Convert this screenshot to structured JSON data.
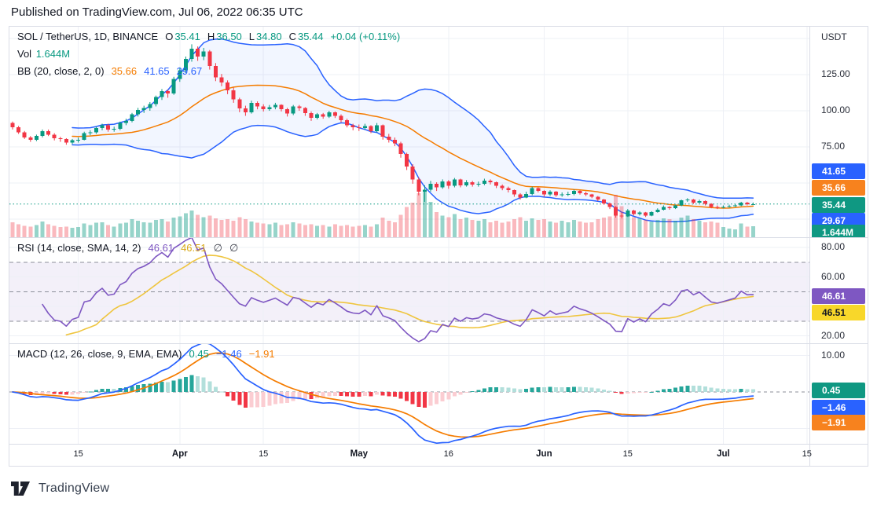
{
  "header": {
    "published": "Published on TradingView.com, Jul 06, 2022 06:35 UTC"
  },
  "footer": {
    "logo_text": "TradingView"
  },
  "main_legend": {
    "title": "SOL / TetherUS, 1D, BINANCE",
    "values": [
      {
        "label": "O",
        "value": "35.41",
        "color": "teal"
      },
      {
        "label": "H",
        "value": "36.50",
        "color": "teal"
      },
      {
        "label": "L",
        "value": "34.80",
        "color": "teal"
      },
      {
        "label": "C",
        "value": "35.44",
        "color": "teal"
      },
      {
        "label": "",
        "value": "+0.04 (+0.11%)",
        "color": "teal"
      }
    ],
    "vol_label": "Vol",
    "vol_value": "1.644M",
    "bb_title": "BB (20, close, 2, 0)",
    "bb_values": [
      {
        "value": "35.66",
        "color": "orange"
      },
      {
        "value": "41.65",
        "color": "blue"
      },
      {
        "value": "29.67",
        "color": "blue"
      }
    ]
  },
  "rsi_legend": {
    "title": "RSI (14, close, SMA, 14, 2)",
    "values": [
      {
        "value": "46.61",
        "color": "purple"
      },
      {
        "value": "46.51",
        "color": "yellow_text"
      },
      {
        "value": "∅",
        "color": "muted"
      },
      {
        "value": "∅",
        "color": "muted"
      }
    ]
  },
  "macd_legend": {
    "title": "MACD (12, 26, close, 9, EMA, EMA)",
    "values": [
      {
        "value": "0.45",
        "color": "teal"
      },
      {
        "value": "−1.46",
        "color": "blue"
      },
      {
        "value": "−1.91",
        "color": "orange"
      }
    ]
  },
  "axis": {
    "currency": "USDT",
    "main_labels": [
      {
        "text": "125.00",
        "price": 125
      },
      {
        "text": "100.00",
        "price": 100
      },
      {
        "text": "75.00",
        "price": 75
      }
    ],
    "main_badges": [
      {
        "text": "41.65",
        "color": "blue"
      },
      {
        "text": "35.66",
        "color": "orange"
      },
      {
        "text": "35.44",
        "color": "teal"
      },
      {
        "text": "29.67",
        "color": "blue"
      },
      {
        "text": "1.644M",
        "color": "teal"
      }
    ],
    "rsi_labels": [
      {
        "text": "80.00",
        "value": 80
      },
      {
        "text": "60.00",
        "value": 60
      },
      {
        "text": "20.00",
        "value": 20
      }
    ],
    "rsi_badges": [
      {
        "text": "46.61",
        "color": "purple"
      },
      {
        "text": "46.51",
        "color": "yellow"
      }
    ],
    "macd_labels": [
      {
        "text": "10.00",
        "value": 10
      }
    ],
    "macd_badges": [
      {
        "text": "0.45",
        "color": "teal"
      },
      {
        "text": "−1.46",
        "color": "blue"
      },
      {
        "text": "−1.91",
        "color": "orange"
      }
    ]
  },
  "time_axis": {
    "labels": [
      "15",
      "Apr",
      "15",
      "May",
      "16",
      "Jun",
      "15",
      "Jul",
      "15"
    ]
  },
  "colors": {
    "up": "#089981",
    "down": "#f23645",
    "blue": "#2962ff",
    "orange": "#f57c00",
    "teal": "#089981",
    "purple": "#7e57c2",
    "yellow_line": "#efc53f",
    "yellow_text": "#d9a918",
    "muted": "#434651",
    "grid": "#eef0f6",
    "dash": "#8b8e99",
    "bb_fill": "rgba(41,98,255,0.06)",
    "rsi_fill": "rgba(126,87,194,0.09)",
    "vol_up": "rgba(8,153,129,0.42)",
    "vol_down": "rgba(242,54,69,0.35)",
    "hist_pos": "#26a69a",
    "hist_pos_light": "#b2dfdb",
    "hist_neg": "#f23645",
    "hist_neg_light": "#fbcdd2",
    "badge_blue": "#2962ff",
    "badge_orange": "#f7821e",
    "badge_teal": "#0f9882",
    "badge_purple": "#7e57c2",
    "badge_yellow": "#f8d72a",
    "price_line": "#089981"
  },
  "chart_data": {
    "type": "candlestick+indicators",
    "symbol": "SOL/TetherUS",
    "interval": "1D",
    "exchange": "BINANCE",
    "last": {
      "open": 35.41,
      "high": 36.5,
      "low": 34.8,
      "close": 35.44,
      "change": "+0.04 (+0.11%)",
      "volume": "1.644M"
    },
    "indicators": {
      "bollinger": {
        "length": 20,
        "source": "close",
        "mult": 2,
        "offset": 0,
        "basis": 35.66,
        "upper": 41.65,
        "lower": 29.67
      },
      "rsi": {
        "length": 14,
        "source": "close",
        "smoothing": "SMA",
        "smoothing_length": 14,
        "value": 46.61,
        "sma": 46.51,
        "levels": [
          70,
          50,
          30
        ],
        "range": [
          20,
          80
        ]
      },
      "macd": {
        "fast": 12,
        "slow": 26,
        "source": "close",
        "signal_length": 9,
        "osc_ma": "EMA",
        "signal_ma": "EMA",
        "histogram": 0.45,
        "macd": -1.46,
        "signal": -1.91
      }
    },
    "price_axis_ticks": [
      125,
      100,
      75
    ],
    "rsi_axis_ticks": [
      80,
      60,
      20
    ],
    "macd_axis_ticks": [
      10
    ],
    "time_tick_labels": [
      "15",
      "Apr",
      "15",
      "May",
      "16",
      "Jun",
      "15",
      "Jul",
      "15"
    ],
    "candles": [
      [
        91.5,
        92.5,
        87,
        88.5
      ],
      [
        88.5,
        89.5,
        84,
        85
      ],
      [
        85,
        86,
        80.5,
        81.5
      ],
      [
        81.5,
        82.5,
        78.5,
        80
      ],
      [
        80,
        83.5,
        79,
        82.5
      ],
      [
        82.5,
        87,
        81.5,
        86
      ],
      [
        86,
        87,
        82.5,
        83.5
      ],
      [
        83.5,
        84.5,
        79.5,
        81
      ],
      [
        81,
        82,
        78.5,
        80.5
      ],
      [
        80.5,
        81,
        76.5,
        78
      ],
      [
        78,
        80.5,
        77,
        79.5
      ],
      [
        79.5,
        81.5,
        78,
        80
      ],
      [
        80,
        85.5,
        79.5,
        84.5
      ],
      [
        84.5,
        86.5,
        83,
        85
      ],
      [
        85,
        89,
        84,
        88
      ],
      [
        88,
        91,
        86.5,
        90
      ],
      [
        90,
        91,
        85.5,
        87
      ],
      [
        87,
        89,
        85.5,
        87.5
      ],
      [
        87.5,
        92.5,
        86.5,
        91.5
      ],
      [
        91.5,
        94.5,
        90,
        93
      ],
      [
        93,
        98.5,
        92,
        97.5
      ],
      [
        97.5,
        102,
        96,
        100.5
      ],
      [
        100.5,
        103.5,
        98.5,
        102
      ],
      [
        102,
        106,
        100,
        104.5
      ],
      [
        104.5,
        110.5,
        103,
        109.5
      ],
      [
        109.5,
        115,
        107.5,
        113.5
      ],
      [
        113.5,
        114.5,
        109,
        112
      ],
      [
        112,
        123.5,
        111,
        122
      ],
      [
        122,
        130,
        120,
        128
      ],
      [
        128,
        137.5,
        126,
        136
      ],
      [
        136,
        146,
        134,
        143
      ],
      [
        143,
        144.5,
        134.5,
        137.5
      ],
      [
        137.5,
        143.5,
        135,
        141
      ],
      [
        141,
        142,
        128.5,
        131
      ],
      [
        131,
        133,
        120.5,
        123
      ],
      [
        123,
        125.5,
        117,
        119.5
      ],
      [
        119.5,
        121,
        111.5,
        114
      ],
      [
        114,
        116,
        105.5,
        108
      ],
      [
        108,
        109,
        99,
        101.5
      ],
      [
        101.5,
        103.5,
        96.5,
        99
      ],
      [
        99,
        107,
        98,
        105.5
      ],
      [
        105.5,
        106.5,
        101,
        103
      ],
      [
        103,
        104.5,
        99.5,
        101
      ],
      [
        101,
        104,
        100,
        102.5
      ],
      [
        102.5,
        105.5,
        101,
        104
      ],
      [
        104,
        104.5,
        99.5,
        101
      ],
      [
        101,
        102,
        96,
        98
      ],
      [
        98,
        104,
        97,
        103
      ],
      [
        103,
        104,
        100,
        102
      ],
      [
        102,
        102.5,
        96.5,
        98.5
      ],
      [
        98.5,
        99.5,
        93,
        95
      ],
      [
        95,
        98.5,
        94,
        97.5
      ],
      [
        97.5,
        98.5,
        94.5,
        96
      ],
      [
        96,
        100,
        95,
        99
      ],
      [
        99,
        99.5,
        95,
        96.5
      ],
      [
        96.5,
        97.5,
        92,
        93.5
      ],
      [
        93.5,
        94.5,
        88.5,
        90
      ],
      [
        90,
        91,
        86.5,
        88.5
      ],
      [
        88.5,
        90.5,
        86,
        88
      ],
      [
        88,
        91,
        87,
        89.5
      ],
      [
        89.5,
        90,
        84.5,
        86
      ],
      [
        86,
        91.5,
        85,
        90
      ],
      [
        90,
        90.5,
        80,
        82
      ],
      [
        82,
        84,
        78,
        80
      ],
      [
        80,
        81.5,
        75.5,
        77.5
      ],
      [
        77.5,
        78.5,
        67.5,
        70
      ],
      [
        70,
        71,
        59,
        61.5
      ],
      [
        61.5,
        63,
        49.5,
        52.5
      ],
      [
        52.5,
        54,
        41.5,
        44
      ],
      [
        44,
        48.5,
        37,
        45.5
      ],
      [
        45.5,
        51.5,
        44,
        49.5
      ],
      [
        49.5,
        50.5,
        44.5,
        47
      ],
      [
        47,
        52.5,
        46,
        51
      ],
      [
        51,
        52,
        46,
        48
      ],
      [
        48,
        53.5,
        47,
        52.5
      ],
      [
        52.5,
        53,
        47,
        48.5
      ],
      [
        48.5,
        52,
        47.5,
        50.5
      ],
      [
        50.5,
        51.5,
        47.5,
        49
      ],
      [
        49,
        51,
        47.5,
        49.5
      ],
      [
        49.5,
        53,
        48.5,
        51.5
      ],
      [
        51.5,
        52.5,
        49,
        50.5
      ],
      [
        50.5,
        51,
        46.5,
        48
      ],
      [
        48,
        49,
        45,
        46.5
      ],
      [
        46.5,
        47.5,
        43.5,
        45
      ],
      [
        45,
        45.5,
        40.5,
        42
      ],
      [
        42,
        43,
        38.5,
        40
      ],
      [
        40,
        44,
        39.5,
        42.5
      ],
      [
        42.5,
        47.5,
        41.5,
        46.5
      ],
      [
        46.5,
        47,
        43.5,
        44.5
      ],
      [
        44.5,
        45,
        40.5,
        42
      ],
      [
        42,
        45,
        41,
        44
      ],
      [
        44,
        44.5,
        40.5,
        41.5
      ],
      [
        41.5,
        43.5,
        40.5,
        42
      ],
      [
        42,
        44,
        41,
        42.5
      ],
      [
        42.5,
        45.5,
        41.5,
        44.5
      ],
      [
        44.5,
        45,
        42,
        43
      ],
      [
        43,
        44,
        41,
        42
      ],
      [
        42,
        42.5,
        39.5,
        40.5
      ],
      [
        40.5,
        41,
        37.5,
        38.5
      ],
      [
        38.5,
        39,
        35,
        36
      ],
      [
        36,
        36.5,
        32,
        33.5
      ],
      [
        33.5,
        34,
        26,
        27.5
      ],
      [
        27.5,
        29.5,
        25.5,
        27
      ],
      [
        27,
        32,
        26.5,
        31
      ],
      [
        31,
        31.5,
        27.5,
        28.5
      ],
      [
        28.5,
        30.5,
        27.5,
        29.5
      ],
      [
        29.5,
        30,
        26.5,
        27.5
      ],
      [
        27.5,
        30.5,
        27,
        30
      ],
      [
        30,
        32.5,
        29.5,
        31.5
      ],
      [
        31.5,
        34.5,
        31,
        33.5
      ],
      [
        33.5,
        34,
        31.5,
        32.5
      ],
      [
        32.5,
        35,
        32,
        34.5
      ],
      [
        34.5,
        38.5,
        34,
        38
      ],
      [
        38,
        39.5,
        37,
        38.5
      ],
      [
        38.5,
        39,
        35.5,
        36.5
      ],
      [
        36.5,
        38.5,
        36,
        37.5
      ],
      [
        37.5,
        38,
        34.5,
        35.5
      ],
      [
        35.5,
        36,
        32.5,
        33.5
      ],
      [
        33.5,
        34.5,
        32,
        33
      ],
      [
        33,
        34.5,
        32.5,
        33.5
      ],
      [
        33.5,
        35,
        33,
        34
      ],
      [
        34,
        35.5,
        33.5,
        34.5
      ],
      [
        34.5,
        37,
        34,
        36.5
      ],
      [
        36.5,
        37,
        34.5,
        35.4
      ],
      [
        35.41,
        36.5,
        34.8,
        35.44
      ]
    ],
    "volumes_millions": [
      2.2,
      1.9,
      1.7,
      1.6,
      1.8,
      2.3,
      1.9,
      1.7,
      1.5,
      1.6,
      1.4,
      1.5,
      2.0,
      1.8,
      2.1,
      2.2,
      1.8,
      1.6,
      2.0,
      2.1,
      2.6,
      2.4,
      2.2,
      2.1,
      2.5,
      2.6,
      2.3,
      2.8,
      3.0,
      3.4,
      3.8,
      3.2,
      2.9,
      3.1,
      2.7,
      2.5,
      2.6,
      2.4,
      2.9,
      2.6,
      2.3,
      2.1,
      2.0,
      1.9,
      2.1,
      1.8,
      1.9,
      2.2,
      2.0,
      1.8,
      1.9,
      1.7,
      1.8,
      1.6,
      1.9,
      1.7,
      1.8,
      1.6,
      1.7,
      1.8,
      1.6,
      1.9,
      2.8,
      2.4,
      2.2,
      3.2,
      4.3,
      4.9,
      6.2,
      6.5,
      5.0,
      3.6,
      3.1,
      2.9,
      3.3,
      2.6,
      2.8,
      2.5,
      2.4,
      2.6,
      2.2,
      2.4,
      2.1,
      2.3,
      2.6,
      2.9,
      2.4,
      2.7,
      2.5,
      2.6,
      2.3,
      2.1,
      2.4,
      2.2,
      2.5,
      2.3,
      2.1,
      2.2,
      2.6,
      2.8,
      3.0,
      6.0,
      4.4,
      3.3,
      2.9,
      2.7,
      2.5,
      2.3,
      2.5,
      2.7,
      2.6,
      2.4,
      2.8,
      3.1,
      2.6,
      2.4,
      2.2,
      2.3,
      2.1,
      1.5,
      1.3,
      1.2,
      2.0,
      1.6,
      1.644
    ]
  }
}
